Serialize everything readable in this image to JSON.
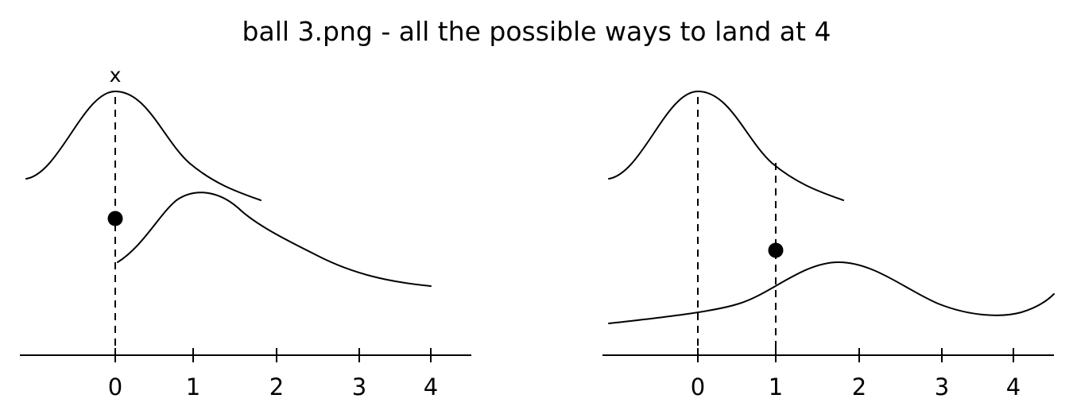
{
  "title": "ball 3.png - all the possible ways to land at 4",
  "panels": [
    {
      "id": "left",
      "tick_labels": [
        "0",
        "1",
        "2",
        "3",
        "4"
      ],
      "marker_label": "x",
      "ball_position": 0
    },
    {
      "id": "right",
      "tick_labels": [
        "0",
        "1",
        "2",
        "3",
        "4"
      ],
      "ball_position": 1
    }
  ]
}
